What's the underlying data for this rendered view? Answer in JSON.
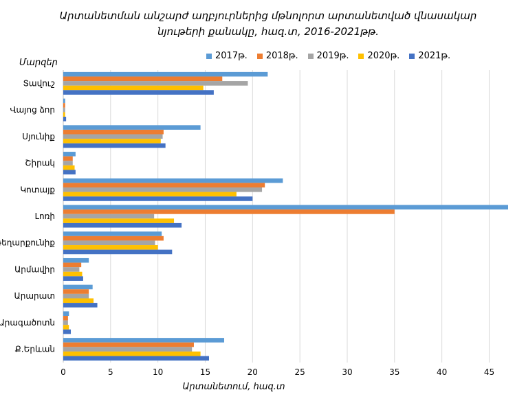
{
  "chart_data": {
    "type": "bar",
    "orientation": "horizontal",
    "title_lines": [
      "Արտանետման անշարժ աղբյուրներից մթնոլորտ արտանետված վնասակար",
      "նյութերի քանակը, հազ.տ, 2016-2021թթ."
    ],
    "ylabel": "Մարզեր",
    "xlabel": "Արտանետում, հազ.տ",
    "xlim": [
      0,
      47
    ],
    "xticks": [
      0,
      5,
      10,
      15,
      20,
      25,
      30,
      35,
      40,
      45
    ],
    "grid": "vertical",
    "legend_position": "top",
    "categories": [
      "Տավուշ",
      "Վայոց ձոր",
      "Սյունիք",
      "Շիրակ",
      "Կոտայք",
      "Լոռի",
      "Գեղարքունիք",
      "Արմավիր",
      "Արարատ",
      "Արագածոտն",
      "Ք.Երևան"
    ],
    "series": [
      {
        "name": "2017թ.",
        "color": "#5B9BD5",
        "values": [
          21.6,
          0.2,
          14.5,
          1.3,
          23.2,
          47.0,
          10.4,
          2.7,
          3.1,
          0.6,
          17.0
        ]
      },
      {
        "name": "2018թ.",
        "color": "#ED7D31",
        "values": [
          16.8,
          0.2,
          10.6,
          1.0,
          21.3,
          35.0,
          10.6,
          1.9,
          2.7,
          0.5,
          13.8
        ]
      },
      {
        "name": "2019թ.",
        "color": "#A5A5A5",
        "values": [
          19.5,
          0.2,
          10.5,
          1.0,
          21.0,
          9.6,
          9.7,
          1.7,
          2.7,
          0.5,
          13.6
        ]
      },
      {
        "name": "2020թ.",
        "color": "#FFC000",
        "values": [
          14.8,
          0.2,
          10.3,
          1.2,
          18.3,
          11.7,
          10.0,
          2.0,
          3.2,
          0.6,
          14.5
        ]
      },
      {
        "name": "2021թ.",
        "color": "#4472C4",
        "values": [
          15.9,
          0.3,
          10.8,
          1.3,
          20.0,
          12.5,
          11.5,
          2.1,
          3.6,
          0.8,
          15.4
        ]
      }
    ]
  }
}
